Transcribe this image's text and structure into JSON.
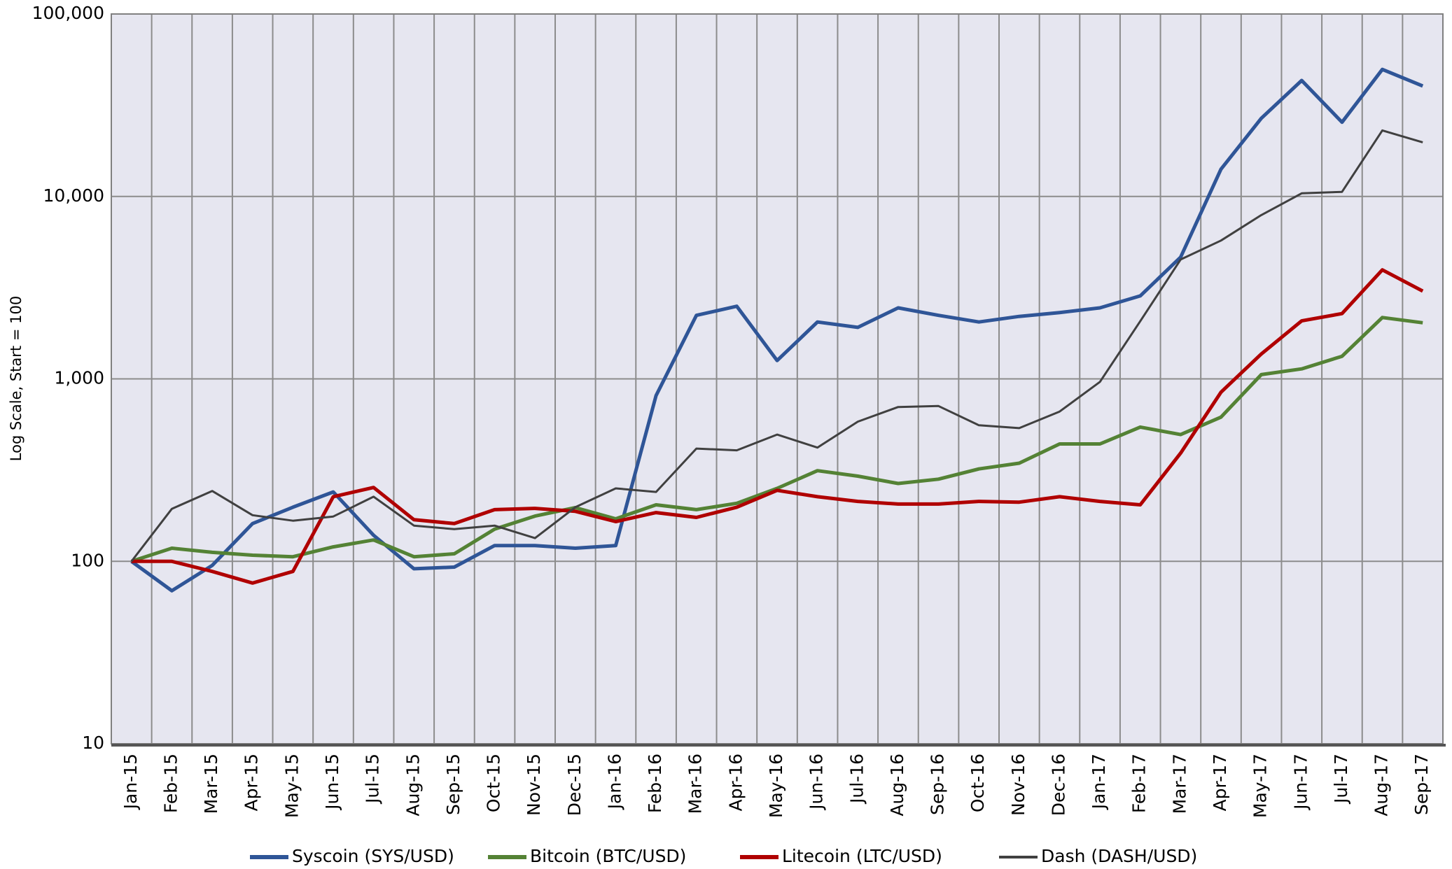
{
  "chart_data": {
    "type": "line",
    "y_label": "Log Scale, Start = 100",
    "log_scale": true,
    "grid": true,
    "categories": [
      "Jan-15",
      "Feb-15",
      "Mar-15",
      "Apr-15",
      "May-15",
      "Jun-15",
      "Jul-15",
      "Aug-15",
      "Sep-15",
      "Oct-15",
      "Nov-15",
      "Dec-15",
      "Jan-16",
      "Feb-16",
      "Mar-16",
      "Apr-16",
      "May-16",
      "Jun-16",
      "Jul-16",
      "Aug-16",
      "Sep-16",
      "Oct-16",
      "Nov-16",
      "Dec-16",
      "Jan-17",
      "Feb-17",
      "Mar-17",
      "Apr-17",
      "May-17",
      "Jun-17",
      "Jul-17",
      "Aug-17",
      "Sep-17"
    ],
    "ylim": [
      10,
      100000
    ],
    "yticks": [
      10,
      100,
      {
        "value": 1000,
        "label": "1,000"
      },
      {
        "value": 10000,
        "label": "10,000"
      },
      {
        "value": 100000,
        "label": "100,000"
      }
    ],
    "legend_position": "bottom",
    "series": [
      {
        "name": "Syscoin (SYS/USD)",
        "color": "#2f5597",
        "values": [
          100,
          69,
          95,
          161,
          198,
          240,
          139,
          91,
          93,
          122,
          122,
          118,
          122,
          810,
          2230,
          2500,
          1260,
          2050,
          1915,
          2450,
          2230,
          2050,
          2200,
          2310,
          2450,
          2850,
          4650,
          14100,
          26800,
          43200,
          25500,
          49700,
          40300
        ]
      },
      {
        "name": "Bitcoin (BTC/USD)",
        "color": "#548235",
        "values": [
          100,
          118,
          112,
          108,
          106,
          120,
          131,
          106,
          110,
          150,
          177,
          197,
          171,
          204,
          192,
          208,
          251,
          314,
          293,
          267,
          282,
          321,
          345,
          440,
          440,
          544,
          495,
          617,
          1055,
          1135,
          1330,
          2170,
          2030
        ]
      },
      {
        "name": "Litecoin (LTC/USD)",
        "color": "#b00000",
        "values": [
          100,
          100,
          88,
          76,
          88,
          226,
          254,
          169,
          161,
          192,
          195,
          188,
          165,
          185,
          174,
          198,
          245,
          226,
          213,
          206,
          206,
          213,
          211,
          226,
          213,
          204,
          392,
          845,
          1370,
          2080,
          2280,
          3960,
          3030
        ]
      },
      {
        "name": "Dash (DASH/USD)",
        "color": "#404040",
        "values": [
          100,
          194,
          243,
          179,
          167,
          176,
          226,
          157,
          150,
          157,
          134,
          198,
          251,
          240,
          415,
          406,
          495,
          420,
          583,
          701,
          710,
          557,
          537,
          662,
          963,
          2070,
          4510,
          5730,
          7900,
          10400,
          10600,
          23000,
          19800
        ]
      }
    ]
  }
}
